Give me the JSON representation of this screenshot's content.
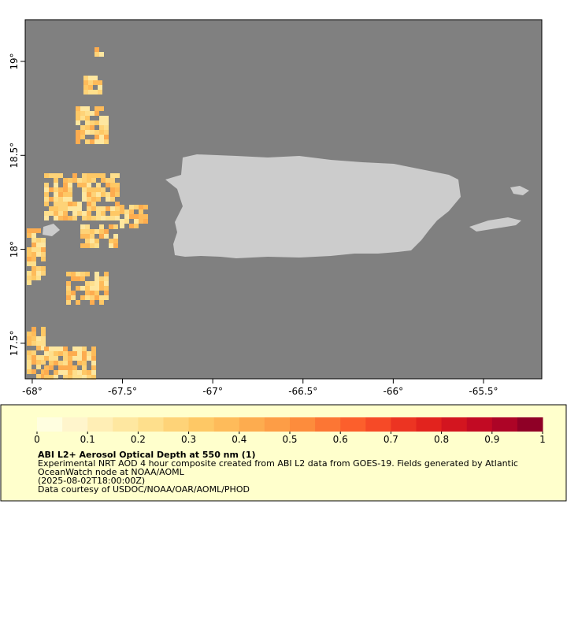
{
  "map": {
    "xlim": [
      -68.039,
      -65.177
    ],
    "ylim": [
      17.311,
      19.222
    ],
    "xticks": [
      {
        "value": -68,
        "label": "-68°"
      },
      {
        "value": -67.5,
        "label": "-67.5°"
      },
      {
        "value": -67,
        "label": "-67°"
      },
      {
        "value": -66.5,
        "label": "-66.5°"
      },
      {
        "value": -66,
        "label": "-66°"
      },
      {
        "value": -65.5,
        "label": "-65.5°"
      }
    ],
    "yticks": [
      {
        "value": 17.5,
        "label": "17.5°"
      },
      {
        "value": 18,
        "label": "18°"
      },
      {
        "value": 18.5,
        "label": "18.5°"
      },
      {
        "value": 19,
        "label": "19°"
      }
    ],
    "ocean_color": "#808080",
    "land_color": "#cccccc"
  },
  "colorbar": {
    "lim": [
      0,
      1
    ],
    "ticks": [
      0,
      0.1,
      0.2,
      0.3,
      0.4,
      0.5,
      0.6,
      0.7,
      0.8,
      0.9,
      1
    ],
    "colors": [
      "#fffee0",
      "#fff5cc",
      "#ffeeb5",
      "#fee7a0",
      "#fedf8c",
      "#fed378",
      "#fec865",
      "#febb5a",
      "#fdac4f",
      "#fd9d46",
      "#fd8c3c",
      "#fc7634",
      "#fc5f2c",
      "#f64a27",
      "#ec3422",
      "#e2231e",
      "#d3151f",
      "#c20a23",
      "#ad0426",
      "#8f0026"
    ]
  },
  "caption": {
    "title": "ABI L2+ Aerosol Optical Depth at 550 nm (1)",
    "lines": [
      "Experimental NRT AOD 4 hour composite created from ABI L2 data from GOES-19. Fields generated by Atlantic",
      "OceanWatch node at NOAA/AOML",
      "(2025-08-02T18:00:00Z)",
      "Data courtesy of USDOC/NOAA/OAR/AOML/PHOD"
    ]
  }
}
